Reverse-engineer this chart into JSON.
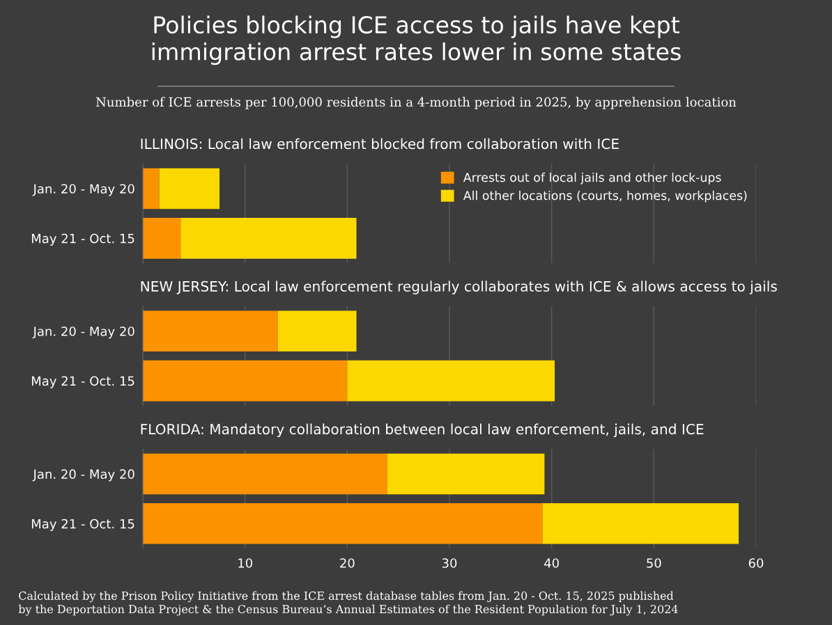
{
  "chart_data": [
    {
      "type": "bar",
      "orientation": "horizontal",
      "stacked": true,
      "title": "Policies blocking ICE access to jails have kept\nimmigration arrest rates lower in some states",
      "subtitle": "Number of ICE arrests per 100,000 residents in a 4-month period in 2025, by apprehension location",
      "annotations": [
        "ILLINOIS: Local law enforcement blocked from collaboration with ICE"
      ],
      "categories": [
        "Jan. 20 - May 20",
        "May 21 - Oct. 15"
      ],
      "series": [
        {
          "name": "Arrests out of local jails and other lock-ups",
          "color": "#fb9300",
          "values": [
            1.6,
            3.7
          ]
        },
        {
          "name": "All other locations (courts, homes, workplaces)",
          "color": "#fad800",
          "values": [
            5.9,
            17.2
          ]
        }
      ],
      "xlim": [
        0,
        60
      ],
      "xticks": [
        10,
        20,
        30,
        40,
        50,
        60
      ],
      "tick_labels": "y",
      "grid": "x",
      "legend": "top right"
    },
    {
      "type": "bar",
      "orientation": "horizontal",
      "stacked": true,
      "annotations": [
        "NEW JERSEY: Local law enforcement regularly collaborates with ICE & allows access to jails"
      ],
      "categories": [
        "Jan. 20 - May 20",
        "May 21 - Oct. 15"
      ],
      "series": [
        {
          "color": "#fb9300",
          "values": [
            13.2,
            20.0
          ]
        },
        {
          "color": "#fad800",
          "values": [
            7.7,
            20.3
          ]
        }
      ],
      "xlim": [
        0,
        60
      ],
      "xticks": [
        10,
        20,
        30,
        40,
        50,
        60
      ],
      "tick_labels": "y",
      "grid": "x"
    },
    {
      "type": "bar",
      "orientation": "horizontal",
      "stacked": true,
      "annotations": [
        "FLORIDA: Mandatory collaboration between local law enforcement, jails, and ICE",
        "Calculated by the Prison Policy Initiative from the ICE arrest database tables from Jan. 20 - Oct. 15, 2025 published\nby the Deportation Data Project & the Census Bureau’s Annual Estimates of the Resident Population for July 1, 2024"
      ],
      "categories": [
        "Jan. 20 - May 20",
        "May 21 - Oct. 15"
      ],
      "series": [
        {
          "color": "#fb9300",
          "values": [
            23.9,
            39.1
          ]
        },
        {
          "color": "#fad800",
          "values": [
            15.4,
            19.2
          ]
        }
      ],
      "xlim": [
        0,
        60
      ],
      "xticks": [
        10,
        20,
        30,
        40,
        50,
        60
      ],
      "grid": "x"
    }
  ]
}
